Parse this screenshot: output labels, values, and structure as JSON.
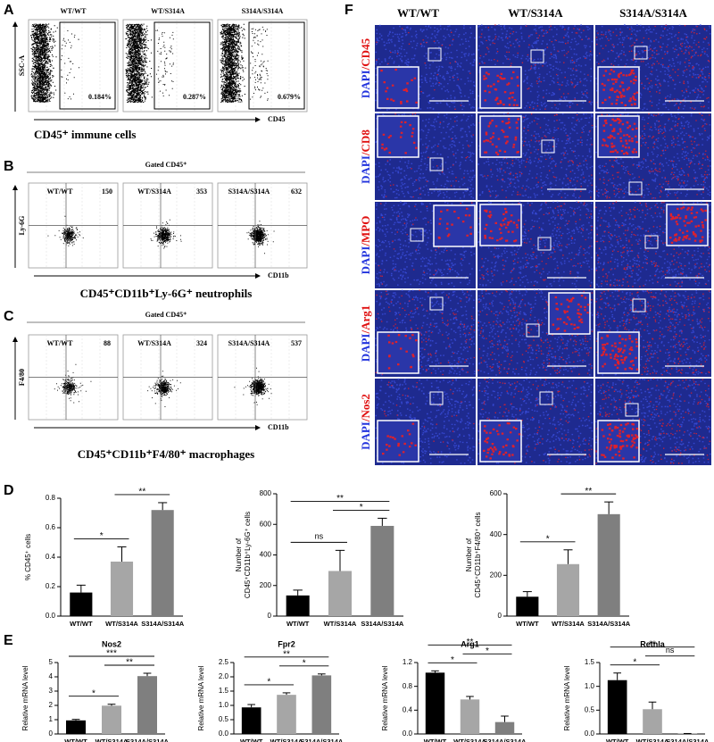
{
  "flow_panels": [
    {
      "label": "A",
      "genotypes": [
        "WT/WT",
        "WT/S314A",
        "S314A/S314A"
      ],
      "y_axis": "SSC-A",
      "x_axis": "CD45",
      "gate_values": [
        "0.184%",
        "0.287%",
        "0.679%"
      ],
      "caption": "CD45⁺ immune cells"
    },
    {
      "label": "B",
      "header": "Gated CD45⁺",
      "genotypes": [
        "WT/WT",
        "WT/S314A",
        "S314A/S314A"
      ],
      "y_axis": "Ly-6G",
      "x_axis": "CD11b",
      "gate_values": [
        150,
        353,
        632
      ],
      "caption": "CD45⁺CD11b⁺Ly-6G⁺ neutrophils"
    },
    {
      "label": "C",
      "header": "Gated CD45⁺",
      "genotypes": [
        "WT/WT",
        "WT/S314A",
        "S314A/S314A"
      ],
      "y_axis": "F4/80",
      "x_axis": "CD11b",
      "gate_values": [
        88,
        324,
        537
      ],
      "caption": "CD45⁺CD11b⁺F4/80⁺ macrophages"
    }
  ],
  "immunofluorescence": {
    "label": "F",
    "columns": [
      "WT/WT",
      "WT/S314A",
      "S314A/S314A"
    ],
    "rows": [
      {
        "dapi": "DAPI",
        "marker": "/CD45"
      },
      {
        "dapi": "DAPI",
        "marker": "/CD8"
      },
      {
        "dapi": "DAPI",
        "marker": "/MPO"
      },
      {
        "dapi": "DAPI",
        "marker": "/Arg1"
      },
      {
        "dapi": "DAPI",
        "marker": "/Nos2"
      }
    ]
  },
  "bar_panel_labels": [
    "D",
    "E"
  ],
  "chart_data": [
    {
      "type": "bar",
      "y_label": [
        "% CD45⁺ cells"
      ],
      "categories": [
        "WT/WT",
        "WT/S314A",
        "S314A/S314A"
      ],
      "values": [
        0.16,
        0.37,
        0.72
      ],
      "errors": [
        0.05,
        0.1,
        0.05
      ],
      "colors": [
        "#000000",
        "#a6a6a6",
        "#7f7f7f"
      ],
      "ylim": [
        0,
        0.8
      ],
      "yticks": [
        {
          "value": 0,
          "label": "0.0"
        },
        0.2,
        0.4,
        0.6,
        0.8
      ],
      "significance": [
        {
          "from": "WT/WT",
          "to": "WT/S314A",
          "label": "*"
        },
        {
          "from": "WT/S314A",
          "to": "S314A/S314A",
          "label": "**"
        }
      ]
    },
    {
      "type": "bar",
      "y_label": [
        "Number of",
        "CD45⁺CD11b⁺Ly-6G⁺ cells"
      ],
      "categories": [
        "WT/WT",
        "WT/S314A",
        "S314A/S314A"
      ],
      "values": [
        135,
        295,
        590
      ],
      "errors": [
        35,
        135,
        50
      ],
      "colors": [
        "#000000",
        "#a6a6a6",
        "#7f7f7f"
      ],
      "ylim": [
        0,
        800
      ],
      "yticks": [
        0,
        200,
        400,
        600,
        800
      ],
      "significance": [
        {
          "from": "WT/WT",
          "to": "WT/S314A",
          "label": "ns"
        },
        {
          "from": "WT/S314A",
          "to": "S314A/S314A",
          "label": "*"
        },
        {
          "from": "WT/WT",
          "to": "S314A/S314A",
          "label": "**"
        }
      ]
    },
    {
      "type": "bar",
      "y_label": [
        "Number of",
        "CD45⁺CD11b⁺F4/80⁺ cells"
      ],
      "categories": [
        "WT/WT",
        "WT/S314A",
        "S314A/S314A"
      ],
      "values": [
        95,
        255,
        500
      ],
      "errors": [
        25,
        70,
        60
      ],
      "colors": [
        "#000000",
        "#a6a6a6",
        "#7f7f7f"
      ],
      "ylim": [
        0,
        600
      ],
      "yticks": [
        0,
        200,
        400,
        600
      ],
      "significance": [
        {
          "from": "WT/WT",
          "to": "WT/S314A",
          "label": "*"
        },
        {
          "from": "WT/S314A",
          "to": "S314A/S314A",
          "label": "**"
        }
      ]
    },
    {
      "type": "bar",
      "title": "Nos2",
      "y_label": [
        "Relative mRNA level"
      ],
      "categories": [
        "WT/WT",
        "WT/S314A",
        "S314A/S314A"
      ],
      "values": [
        0.95,
        1.98,
        4.05
      ],
      "errors": [
        0.07,
        0.1,
        0.2
      ],
      "colors": [
        "#000000",
        "#a6a6a6",
        "#7f7f7f"
      ],
      "ylim": [
        0,
        5
      ],
      "yticks": [
        0,
        1,
        2,
        3,
        4,
        5
      ],
      "significance": [
        {
          "from": "WT/WT",
          "to": "WT/S314A",
          "label": "*"
        },
        {
          "from": "WT/S314A",
          "to": "S314A/S314A",
          "label": "**"
        },
        {
          "from": "WT/WT",
          "to": "S314A/S314A",
          "label": "***"
        }
      ]
    },
    {
      "type": "bar",
      "title": "Fpr2",
      "y_label": [
        "Relative mRNA level"
      ],
      "categories": [
        "WT/WT",
        "WT/S314A",
        "S314A/S314A"
      ],
      "values": [
        0.93,
        1.37,
        2.05
      ],
      "errors": [
        0.1,
        0.07,
        0.05
      ],
      "colors": [
        "#000000",
        "#a6a6a6",
        "#7f7f7f"
      ],
      "ylim": [
        0,
        2.5
      ],
      "yticks": [
        {
          "value": 0,
          "label": "0.0"
        },
        0.5,
        {
          "value": 1,
          "label": "1.0"
        },
        1.5,
        {
          "value": 2,
          "label": "2.0"
        },
        2.5
      ],
      "significance": [
        {
          "from": "WT/WT",
          "to": "WT/S314A",
          "label": "*"
        },
        {
          "from": "WT/S314A",
          "to": "S314A/S314A",
          "label": "*"
        },
        {
          "from": "WT/WT",
          "to": "S314A/S314A",
          "label": "**"
        }
      ]
    },
    {
      "type": "bar",
      "title": "Arg1",
      "y_label": [
        "Relative mRNA level"
      ],
      "categories": [
        "WT/WT",
        "WT/S314A",
        "S314A/S314A"
      ],
      "values": [
        1.03,
        0.58,
        0.2
      ],
      "errors": [
        0.03,
        0.05,
        0.1
      ],
      "colors": [
        "#000000",
        "#a6a6a6",
        "#7f7f7f"
      ],
      "ylim": [
        0,
        1.2
      ],
      "yticks": [
        {
          "value": 0,
          "label": "0.0"
        },
        0.4,
        0.8,
        1.2
      ],
      "significance": [
        {
          "from": "WT/WT",
          "to": "WT/S314A",
          "label": "*"
        },
        {
          "from": "WT/S314A",
          "to": "S314A/S314A",
          "label": "*"
        },
        {
          "from": "WT/WT",
          "to": "S314A/S314A",
          "label": "**"
        }
      ]
    },
    {
      "type": "bar",
      "title": "Retnla",
      "y_label": [
        "Relative mRNA level"
      ],
      "categories": [
        "WT/WT",
        "WT/S314A",
        "S314A/S314A"
      ],
      "values": [
        1.13,
        0.52,
        0.01
      ],
      "errors": [
        0.15,
        0.15,
        0
      ],
      "colors": [
        "#000000",
        "#a6a6a6",
        "#7f7f7f"
      ],
      "ylim": [
        0,
        1.5
      ],
      "yticks": [
        {
          "value": 0,
          "label": "0.0"
        },
        0.5,
        {
          "value": 1,
          "label": "1.0"
        },
        1.5
      ],
      "significance": [
        {
          "from": "WT/WT",
          "to": "WT/S314A",
          "label": "*"
        },
        {
          "from": "WT/S314A",
          "to": "S314A/S314A",
          "label": "ns"
        },
        {
          "from": "WT/WT",
          "to": "S314A/S314A",
          "label": "**"
        }
      ]
    }
  ]
}
